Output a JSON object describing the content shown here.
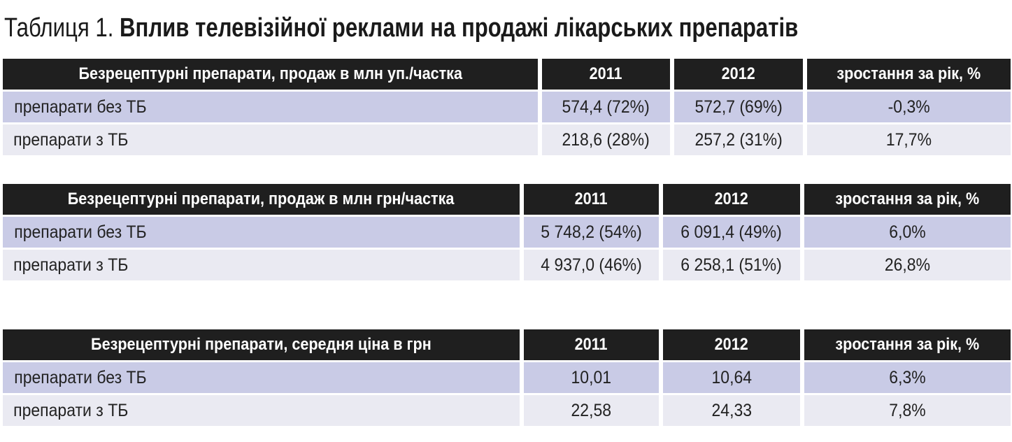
{
  "title": {
    "label": "Таблиця 1.",
    "text": "Вплив телевізійної реклами на продажі лікарських препаратів"
  },
  "tables": [
    {
      "header": [
        "Безрецептурні препарати, продаж в млн уп./частка",
        "2011",
        "2012",
        "зростання за рік, %"
      ],
      "rows": [
        [
          "препарати без ТБ",
          "574,4 (72%)",
          "572,7 (69%)",
          "-0,3%"
        ],
        [
          "препарати з ТБ",
          "218,6 (28%)",
          "257,2 (31%)",
          "17,7%"
        ]
      ]
    },
    {
      "header": [
        "Безрецептурні препарати, продаж в млн грн/частка",
        "2011",
        "2012",
        "зростання за рік, %"
      ],
      "rows": [
        [
          "препарати без ТБ",
          "5 748,2 (54%)",
          "6 091,4 (49%)",
          "6,0%"
        ],
        [
          "препарати з ТБ",
          "4 937,0 (46%)",
          "6 258,1 (51%)",
          "26,8%"
        ]
      ]
    },
    {
      "header": [
        "Безрецептурні препарати, середня ціна в грн",
        "2011",
        "2012",
        "зростання за рік, %"
      ],
      "rows": [
        [
          "препарати без ТБ",
          "10,01",
          "10,64",
          "6,3%"
        ],
        [
          "препарати з ТБ",
          "22,58",
          "24,33",
          "7,8%"
        ]
      ]
    }
  ]
}
